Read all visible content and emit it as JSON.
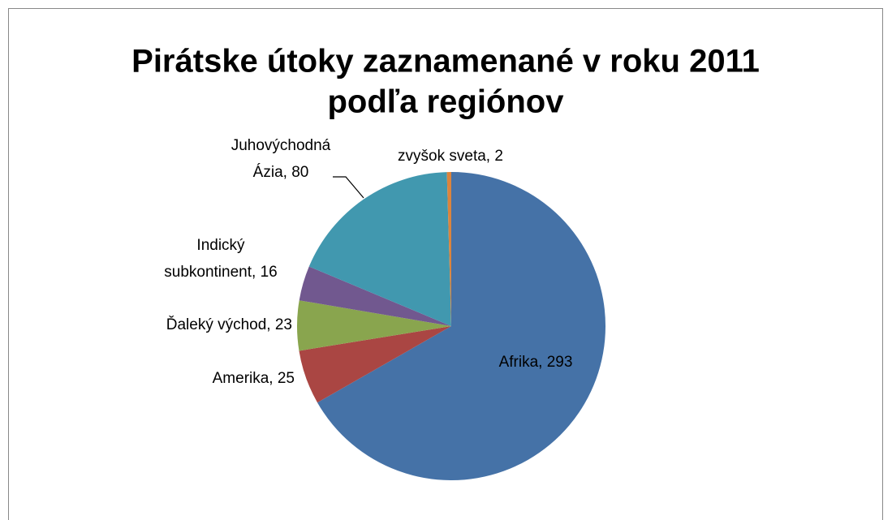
{
  "chart_data": {
    "type": "pie",
    "title": [
      "Pirátske útoky zaznamenané v roku 2011",
      "podľa regiónov"
    ],
    "values": [
      293,
      25,
      23,
      16,
      80,
      2
    ],
    "value_labels": [
      [
        "Afrika, 293"
      ],
      [
        "Amerika, 25"
      ],
      [
        "Ďaleký východ, 23"
      ],
      [
        "Indický",
        "subkontinent, 16"
      ],
      [
        "Juhovýchodná",
        "Ázia, 80"
      ],
      [
        "zvyšok sveta, 2"
      ]
    ],
    "colors": [
      "#4572a7",
      "#aa4643",
      "#89a54e",
      "#71588f",
      "#4198af",
      "#db843d"
    ]
  }
}
